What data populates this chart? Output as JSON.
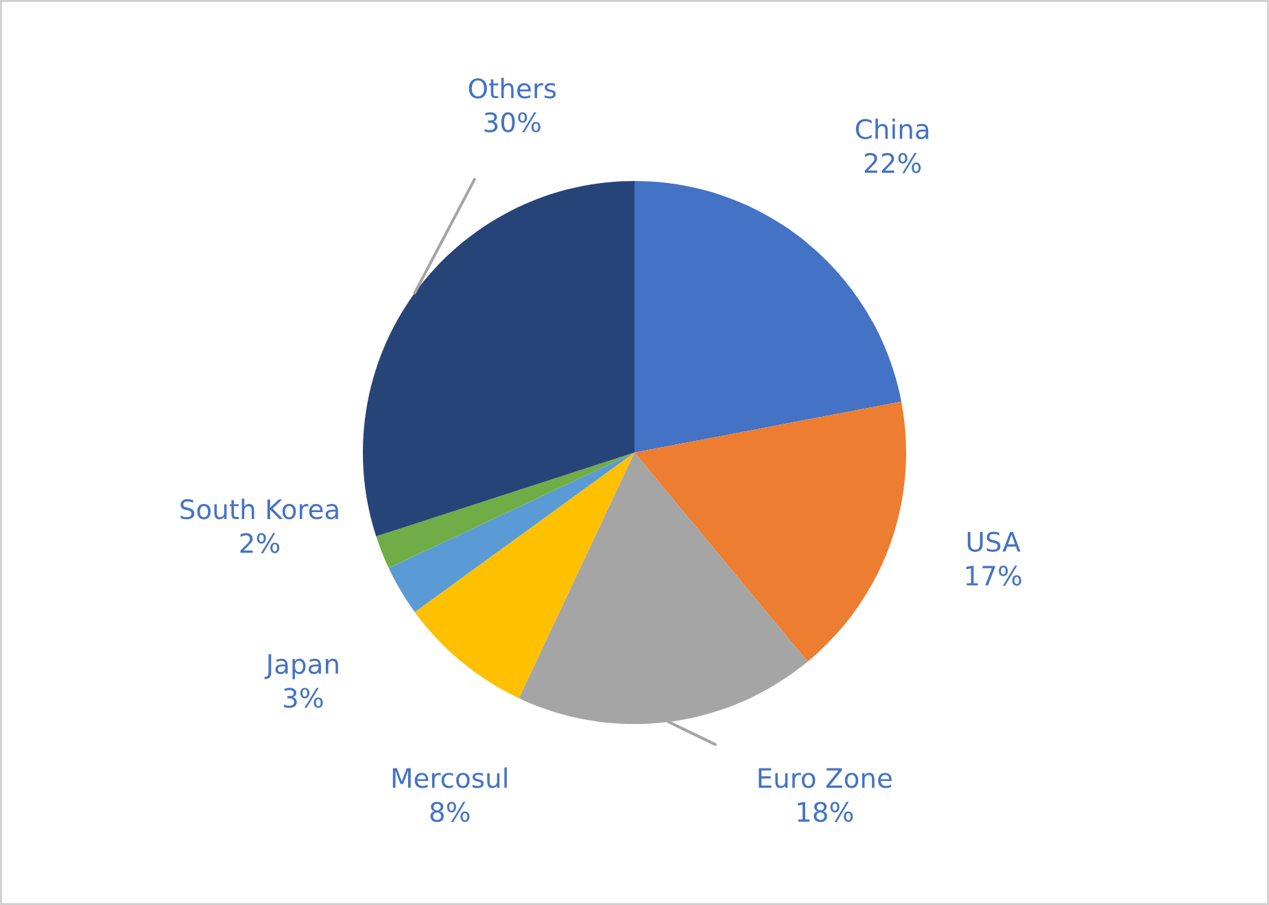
{
  "chart_data": {
    "type": "pie",
    "categories": [
      "China",
      "USA",
      "Euro Zone",
      "Mercosul",
      "Japan",
      "South Korea",
      "Others"
    ],
    "values": [
      22,
      17,
      18,
      8,
      3,
      2,
      30
    ],
    "value_labels": [
      "22%",
      "17%",
      "18%",
      "8%",
      "3%",
      "2%",
      "30%"
    ],
    "colors": [
      "#4472c4",
      "#ed7d31",
      "#a5a5a5",
      "#ffc000",
      "#5b9bd5",
      "#70ad47",
      "#264478"
    ],
    "legend": false
  }
}
